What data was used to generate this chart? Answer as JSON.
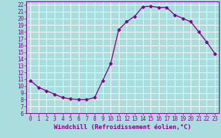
{
  "x": [
    0,
    1,
    2,
    3,
    4,
    5,
    6,
    7,
    8,
    9,
    10,
    11,
    12,
    13,
    14,
    15,
    16,
    17,
    18,
    19,
    20,
    21,
    22,
    23
  ],
  "y": [
    10.8,
    9.8,
    9.3,
    8.8,
    8.3,
    8.1,
    8.0,
    8.0,
    8.3,
    10.8,
    13.3,
    18.3,
    19.5,
    20.3,
    21.7,
    21.8,
    21.6,
    21.6,
    20.5,
    20.0,
    19.5,
    18.0,
    16.5,
    14.8
  ],
  "color": "#880088",
  "bg_color": "#aadddd",
  "grid_color": "#cceeee",
  "xlabel": "Windchill (Refroidissement éolien,°C)",
  "ylim": [
    6,
    22.5
  ],
  "xlim": [
    -0.5,
    23.5
  ],
  "yticks": [
    6,
    7,
    8,
    9,
    10,
    11,
    12,
    13,
    14,
    15,
    16,
    17,
    18,
    19,
    20,
    21,
    22
  ],
  "xticks": [
    0,
    1,
    2,
    3,
    4,
    5,
    6,
    7,
    8,
    9,
    10,
    11,
    12,
    13,
    14,
    15,
    16,
    17,
    18,
    19,
    20,
    21,
    22,
    23
  ],
  "marker": "D",
  "marker_size": 2.5,
  "line_width": 1.0,
  "xlabel_fontsize": 6.5,
  "tick_fontsize": 5.5
}
